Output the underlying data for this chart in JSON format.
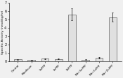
{
  "categories": [
    "Control",
    "Riboflavin",
    "SnPPP",
    "FePPP",
    "ZnPPP",
    "Rib+SnPPP",
    "Rib+FePPP",
    "Rib+ZnPPP"
  ],
  "values": [
    0.25,
    0.18,
    0.32,
    0.28,
    5.6,
    0.2,
    0.45,
    5.3
  ],
  "errors": [
    0.06,
    0.04,
    0.06,
    0.05,
    0.7,
    0.04,
    0.09,
    0.55
  ],
  "bar_color": "#e0e0e0",
  "bar_edge_color": "#444444",
  "ylabel": "Specific Activity (nmol/kg/hr)",
  "ylim": [
    0,
    7
  ],
  "yticks": [
    0,
    1,
    2,
    3,
    4,
    5,
    6,
    7
  ],
  "figsize": [
    1.75,
    1.12
  ],
  "dpi": 100
}
